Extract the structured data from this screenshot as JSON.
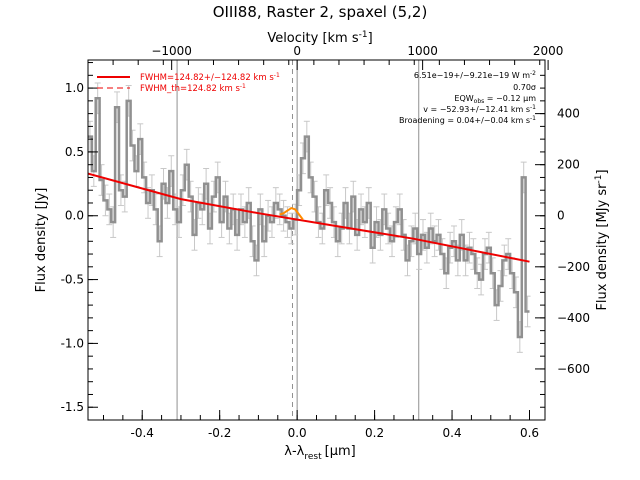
{
  "chart_data": {
    "type": "line",
    "title": "OIII88, Raster 2, spaxel (5,2)",
    "xlabel": "λ-λ",
    "xlabel_sub": "rest",
    "xlabel_unit": "[μm]",
    "ylabel": "Flux density [Jy]",
    "top_xlabel": "Velocity [km s",
    "top_xlabel_sup": "-1",
    "top_xlabel_end": "]",
    "right_ylabel": "Flux density [MJy sr",
    "right_ylabel_sup": "-1",
    "right_ylabel_end": "]",
    "xlim": [
      -0.54,
      0.64
    ],
    "ylim": [
      -1.6,
      1.22
    ],
    "x_ticks": [
      "-0.4",
      "-0.2",
      "0.0",
      "0.2",
      "0.4",
      "0.6"
    ],
    "x_tick_values": [
      -0.4,
      -0.2,
      0.0,
      0.2,
      0.4,
      0.6
    ],
    "y_ticks": [
      "-1.5",
      "-1.0",
      "-0.5",
      "0.0",
      "0.5",
      "1.0"
    ],
    "y_tick_values": [
      -1.5,
      -1.0,
      -0.5,
      0.0,
      0.5,
      1.0
    ],
    "top_ticks": [
      "−1000",
      "0",
      "1000",
      "2000"
    ],
    "top_tick_x": [
      -0.324,
      0.0,
      0.324,
      0.648
    ],
    "right_ticks": [
      "400",
      "200",
      "0",
      "−200",
      "−400",
      "−600"
    ],
    "right_tick_y": [
      0.8,
      0.4,
      0.0,
      -0.4,
      -0.8,
      -1.2
    ],
    "vertical_lines_solid": [
      -0.31,
      0.0,
      0.314
    ],
    "vertical_line_dashed": -0.012,
    "legend": {
      "solid_label": "FWHM=124.82+/−124.82 km s",
      "solid_sup": "-1",
      "dashed_label": "FWHM_th=124.82 km s",
      "dashed_sup": "-1",
      "color": "#ee0000"
    },
    "annotations": [
      "6.51e−19+/−9.21e−19 W m",
      "0.70σ",
      "EQW",
      "v = −52.93+/−12.41 km s",
      "Broadening = 0.04+/−0.04 km s"
    ],
    "annotation_sup": [
      "-2",
      "",
      "",
      "-1",
      "-1"
    ],
    "eqw_sub": "obs",
    "eqw_value": " = −0.12 μm",
    "colors": {
      "data": "#909090",
      "errorbar": "#c8c8c8",
      "fit": "#ee0000",
      "line_feature": "#ff8c00",
      "grid_line": "#909090"
    },
    "series": [
      {
        "kind": "data-step",
        "x": [
          -0.54,
          -0.53,
          -0.52,
          -0.51,
          -0.5,
          -0.49,
          -0.48,
          -0.47,
          -0.46,
          -0.45,
          -0.44,
          -0.43,
          -0.42,
          -0.41,
          -0.4,
          -0.39,
          -0.38,
          -0.37,
          -0.36,
          -0.35,
          -0.34,
          -0.33,
          -0.32,
          -0.31,
          -0.3,
          -0.29,
          -0.28,
          -0.27,
          -0.26,
          -0.25,
          -0.24,
          -0.23,
          -0.22,
          -0.21,
          -0.2,
          -0.19,
          -0.18,
          -0.17,
          -0.16,
          -0.15,
          -0.14,
          -0.13,
          -0.12,
          -0.11,
          -0.1,
          -0.09,
          -0.08,
          -0.07,
          -0.06,
          -0.05,
          -0.04,
          -0.03,
          -0.02,
          -0.01,
          0.0,
          0.01,
          0.02,
          0.03,
          0.04,
          0.05,
          0.06,
          0.07,
          0.08,
          0.09,
          0.1,
          0.11,
          0.12,
          0.13,
          0.14,
          0.15,
          0.16,
          0.17,
          0.18,
          0.19,
          0.2,
          0.21,
          0.22,
          0.23,
          0.24,
          0.25,
          0.26,
          0.27,
          0.28,
          0.29,
          0.3,
          0.31,
          0.32,
          0.33,
          0.34,
          0.35,
          0.36,
          0.37,
          0.38,
          0.39,
          0.4,
          0.41,
          0.42,
          0.43,
          0.44,
          0.45,
          0.46,
          0.47,
          0.48,
          0.49,
          0.5,
          0.51,
          0.52,
          0.53,
          0.54,
          0.55,
          0.56,
          0.57,
          0.58,
          0.59
        ],
        "y": [
          0.62,
          0.35,
          0.92,
          0.28,
          0.12,
          0.05,
          -0.05,
          0.85,
          0.2,
          0.15,
          0.9,
          0.55,
          0.35,
          0.6,
          0.3,
          0.1,
          0.2,
          0.05,
          -0.2,
          0.25,
          0.1,
          0.35,
          0.05,
          -0.05,
          0.2,
          0.4,
          0.15,
          -0.15,
          0.1,
          0.05,
          0.25,
          -0.1,
          0.15,
          0.3,
          -0.05,
          0.15,
          -0.1,
          0.05,
          -0.15,
          0.05,
          -0.05,
          0.1,
          -0.2,
          -0.35,
          0.05,
          -0.2,
          0.0,
          -0.05,
          0.1,
          0.05,
          0.0,
          -0.05,
          -0.1,
          -0.03,
          0.2,
          0.45,
          0.62,
          0.3,
          0.15,
          -0.05,
          -0.1,
          0.2,
          0.1,
          -0.05,
          -0.2,
          -0.1,
          0.1,
          -0.1,
          0.15,
          -0.15,
          0.05,
          -0.05,
          0.1,
          -0.25,
          -0.05,
          -0.15,
          0.05,
          -0.1,
          -0.2,
          -0.05,
          0.05,
          -0.15,
          -0.35,
          -0.2,
          -0.1,
          -0.3,
          -0.15,
          -0.25,
          -0.1,
          -0.2,
          -0.15,
          -0.3,
          -0.45,
          -0.25,
          -0.2,
          -0.35,
          -0.15,
          -0.35,
          -0.25,
          -0.3,
          -0.45,
          -0.5,
          -0.3,
          -0.25,
          -0.45,
          -0.7,
          -0.55,
          -0.35,
          -0.3,
          -0.45,
          -0.6,
          -0.95,
          0.3,
          -0.75
        ],
        "err": [
          0.12,
          0.12,
          0.12,
          0.12,
          0.12,
          0.12,
          0.12,
          0.12,
          0.12,
          0.12,
          0.12,
          0.12,
          0.12,
          0.12,
          0.12,
          0.12,
          0.12,
          0.12,
          0.12,
          0.12,
          0.12,
          0.12,
          0.12,
          0.12,
          0.12,
          0.12,
          0.12,
          0.12,
          0.12,
          0.12,
          0.12,
          0.12,
          0.12,
          0.12,
          0.12,
          0.12,
          0.12,
          0.12,
          0.12,
          0.12,
          0.12,
          0.12,
          0.12,
          0.12,
          0.12,
          0.12,
          0.12,
          0.12,
          0.12,
          0.12,
          0.12,
          0.12,
          0.12,
          0.12,
          0.12,
          0.12,
          0.12,
          0.12,
          0.12,
          0.12,
          0.12,
          0.12,
          0.12,
          0.12,
          0.12,
          0.12,
          0.12,
          0.12,
          0.12,
          0.12,
          0.12,
          0.12,
          0.12,
          0.12,
          0.12,
          0.12,
          0.12,
          0.12,
          0.12,
          0.12,
          0.12,
          0.12,
          0.12,
          0.12,
          0.12,
          0.12,
          0.12,
          0.12,
          0.12,
          0.12,
          0.12,
          0.12,
          0.12,
          0.12,
          0.12,
          0.12,
          0.12,
          0.12,
          0.12,
          0.12,
          0.12,
          0.12,
          0.12,
          0.12,
          0.12,
          0.12,
          0.12,
          0.12,
          0.12,
          0.12,
          0.12,
          0.12,
          0.12,
          0.12
        ]
      },
      {
        "kind": "fit",
        "x": [
          -0.54,
          -0.3,
          -0.1,
          0.1,
          0.3,
          0.6
        ],
        "y": [
          0.33,
          0.13,
          0.02,
          -0.08,
          -0.18,
          -0.36
        ]
      },
      {
        "kind": "line-feature",
        "x": [
          -0.045,
          -0.035,
          -0.025,
          -0.015,
          -0.005,
          0.005,
          0.015
        ],
        "y": [
          0.01,
          0.02,
          0.04,
          0.06,
          0.05,
          0.01,
          -0.03
        ]
      }
    ]
  }
}
